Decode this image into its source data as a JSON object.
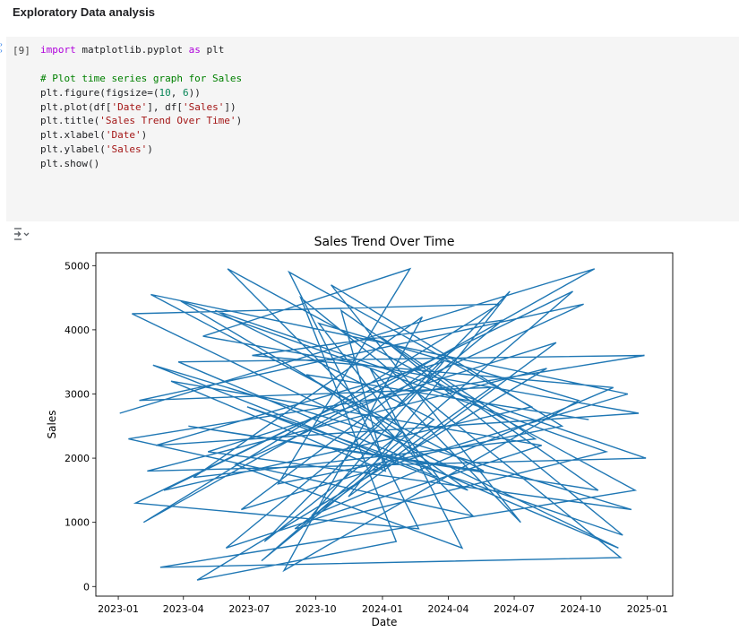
{
  "notebook": {
    "section_heading": "Exploratory Data analysis",
    "cell": {
      "execution_count": "[9]",
      "code_lines": [
        [
          {
            "t": "import",
            "c": "kw"
          },
          {
            "t": " matplotlib.pyplot "
          },
          {
            "t": "as",
            "c": "kw"
          },
          {
            "t": " plt"
          }
        ],
        [],
        [
          {
            "t": "# Plot time series graph for Sales",
            "c": "cm"
          }
        ],
        [
          {
            "t": "plt.figure(figsize=("
          },
          {
            "t": "10",
            "c": "num"
          },
          {
            "t": ", "
          },
          {
            "t": "6",
            "c": "num"
          },
          {
            "t": "))"
          }
        ],
        [
          {
            "t": "plt.plot(df["
          },
          {
            "t": "'Date'",
            "c": "str"
          },
          {
            "t": "], df["
          },
          {
            "t": "'Sales'",
            "c": "str"
          },
          {
            "t": "])"
          }
        ],
        [
          {
            "t": "plt.title("
          },
          {
            "t": "'Sales Trend Over Time'",
            "c": "str"
          },
          {
            "t": ")"
          }
        ],
        [
          {
            "t": "plt.xlabel("
          },
          {
            "t": "'Date'",
            "c": "str"
          },
          {
            "t": ")"
          }
        ],
        [
          {
            "t": "plt.ylabel("
          },
          {
            "t": "'Sales'",
            "c": "str"
          },
          {
            "t": ")"
          }
        ],
        [
          {
            "t": "plt.show()"
          }
        ]
      ]
    },
    "output_icon": "output-toggle-icon"
  },
  "chart_data": {
    "type": "line",
    "title": "Sales Trend Over Time",
    "xlabel": "Date",
    "ylabel": "Sales",
    "x_ticks": [
      "2023-01",
      "2023-04",
      "2023-07",
      "2023-10",
      "2024-01",
      "2024-04",
      "2024-07",
      "2024-10",
      "2025-01"
    ],
    "y_ticks": [
      0,
      1000,
      2000,
      3000,
      4000,
      5000
    ],
    "xlim": [
      "2022-12-01",
      "2025-02-05"
    ],
    "ylim": [
      -150,
      5200
    ],
    "grid": false,
    "line_color": "#1f77b4",
    "series": [
      {
        "points": [
          [
            "2023-01-03",
            2700
          ],
          [
            "2024-10-20",
            4950
          ],
          [
            "2023-02-05",
            1000
          ],
          [
            "2024-06-10",
            4400
          ],
          [
            "2023-01-20",
            4250
          ],
          [
            "2024-11-22",
            600
          ],
          [
            "2023-03-25",
            3500
          ],
          [
            "2024-12-28",
            3600
          ],
          [
            "2023-01-15",
            2300
          ],
          [
            "2024-05-05",
            1100
          ],
          [
            "2023-06-01",
            4950
          ],
          [
            "2024-12-15",
            1500
          ],
          [
            "2023-02-28",
            300
          ],
          [
            "2024-11-25",
            450
          ],
          [
            "2023-09-10",
            4500
          ],
          [
            "2024-01-20",
            700
          ],
          [
            "2023-04-20",
            100
          ],
          [
            "2024-08-15",
            3400
          ],
          [
            "2023-02-10",
            1800
          ],
          [
            "2024-12-30",
            2000
          ],
          [
            "2023-05-15",
            4300
          ],
          [
            "2024-03-12",
            2600
          ],
          [
            "2023-07-18",
            400
          ],
          [
            "2024-09-20",
            4600
          ],
          [
            "2023-03-05",
            1500
          ],
          [
            "2024-07-25",
            2800
          ],
          [
            "2023-08-25",
            4900
          ],
          [
            "2024-02-20",
            900
          ],
          [
            "2023-01-25",
            1300
          ],
          [
            "2024-04-10",
            3700
          ],
          [
            "2023-06-20",
            1200
          ],
          [
            "2024-12-05",
            3000
          ],
          [
            "2023-02-15",
            4550
          ],
          [
            "2024-05-20",
            1800
          ],
          [
            "2023-04-08",
            2500
          ],
          [
            "2024-10-25",
            1500
          ],
          [
            "2023-11-05",
            4300
          ],
          [
            "2024-01-05",
            1800
          ],
          [
            "2023-03-15",
            3200
          ],
          [
            "2024-08-08",
            2200
          ],
          [
            "2023-05-30",
            600
          ],
          [
            "2024-06-15",
            4150
          ],
          [
            "2023-07-05",
            3600
          ],
          [
            "2024-11-15",
            3100
          ],
          [
            "2023-09-25",
            1100
          ],
          [
            "2024-03-25",
            3500
          ],
          [
            "2023-02-22",
            2200
          ],
          [
            "2024-12-20",
            2700
          ],
          [
            "2023-04-28",
            3900
          ],
          [
            "2024-02-08",
            4950
          ],
          [
            "2023-08-10",
            1600
          ],
          [
            "2024-09-05",
            2500
          ],
          [
            "2023-10-22",
            4700
          ],
          [
            "2024-07-10",
            1000
          ],
          [
            "2023-12-15",
            3400
          ],
          [
            "2024-04-20",
            600
          ],
          [
            "2023-06-12",
            1900
          ],
          [
            "2024-10-05",
            4400
          ],
          [
            "2023-01-30",
            2900
          ],
          [
            "2024-05-30",
            3100
          ],
          [
            "2023-09-02",
            900
          ],
          [
            "2024-11-05",
            2100
          ],
          [
            "2023-03-28",
            4450
          ],
          [
            "2024-01-28",
            2400
          ],
          [
            "2023-07-22",
            700
          ],
          [
            "2024-06-25",
            4600
          ],
          [
            "2023-11-15",
            1400
          ],
          [
            "2024-08-28",
            3800
          ],
          [
            "2023-05-05",
            2100
          ],
          [
            "2024-12-10",
            1200
          ],
          [
            "2023-02-18",
            3450
          ],
          [
            "2024-03-18",
            1700
          ],
          [
            "2023-10-05",
            4100
          ],
          [
            "2024-09-28",
            2900
          ],
          [
            "2023-08-18",
            250
          ],
          [
            "2024-02-25",
            4200
          ],
          [
            "2023-04-15",
            1700
          ],
          [
            "2024-07-30",
            2300
          ],
          [
            "2023-12-28",
            3900
          ],
          [
            "2024-11-28",
            800
          ],
          [
            "2023-06-28",
            2800
          ],
          [
            "2024-04-28",
            1500
          ],
          [
            "2023-09-18",
            3300
          ],
          [
            "2024-10-12",
            2600
          ]
        ]
      }
    ]
  }
}
